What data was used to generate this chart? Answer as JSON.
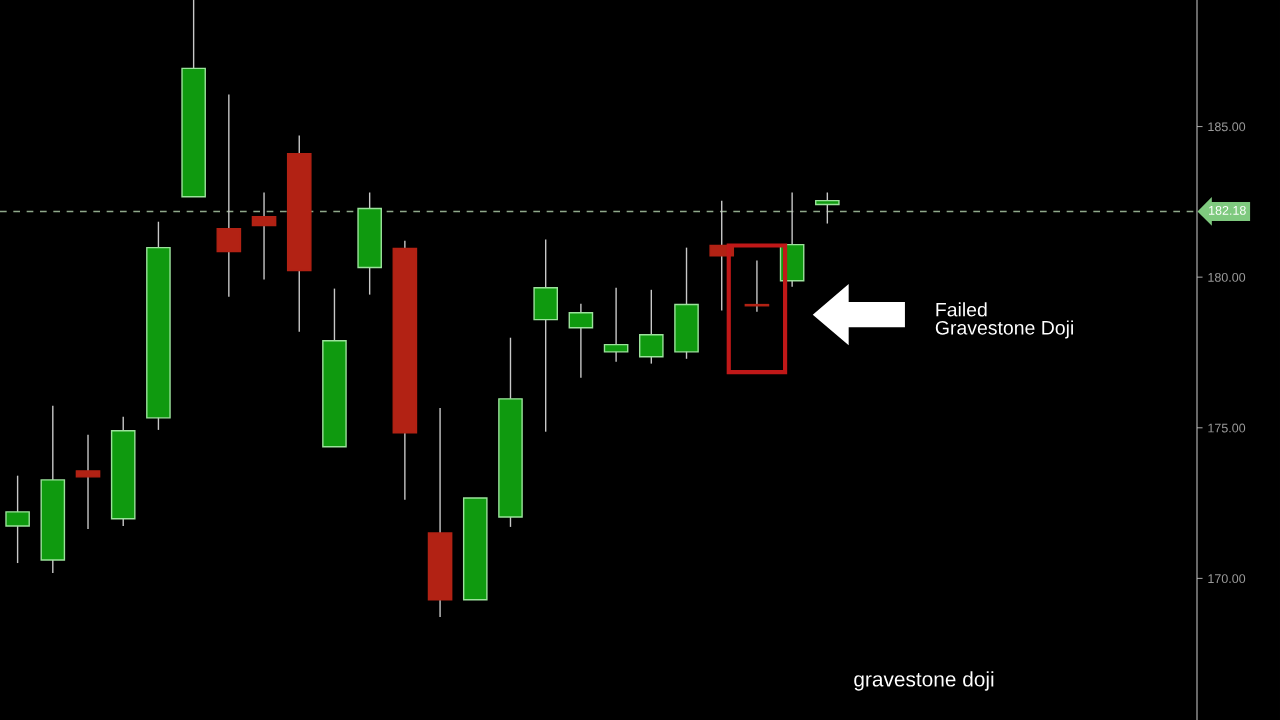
{
  "chart_data": {
    "type": "candlestick",
    "categories": [
      null,
      null,
      null,
      null,
      null,
      null,
      null,
      null,
      null,
      null,
      null,
      null,
      null,
      null,
      null,
      null,
      null,
      null,
      null,
      null,
      null,
      null,
      null,
      null,
      null,
      null,
      null,
      null,
      null,
      null,
      null,
      null,
      null,
      null
    ],
    "ohlc": [
      [
        171.74,
        173.41,
        170.51,
        172.21
      ],
      [
        170.61,
        175.73,
        170.18,
        173.27
      ],
      [
        173.57,
        174.77,
        171.64,
        173.37
      ],
      [
        171.98,
        175.37,
        171.74,
        174.9
      ],
      [
        175.33,
        181.84,
        174.93,
        180.98
      ],
      [
        182.67,
        189.2,
        182.67,
        186.93
      ],
      [
        181.61,
        186.06,
        179.35,
        180.85
      ],
      [
        182.01,
        182.81,
        179.92,
        181.71
      ],
      [
        184.1,
        184.7,
        178.19,
        180.22
      ],
      [
        174.37,
        179.62,
        174.37,
        177.89
      ],
      [
        180.32,
        182.81,
        179.42,
        182.28
      ],
      [
        180.95,
        181.21,
        172.61,
        174.83
      ],
      [
        171.51,
        175.66,
        168.72,
        169.29
      ],
      [
        169.29,
        172.67,
        169.29,
        172.67
      ],
      [
        172.04,
        177.99,
        171.71,
        175.96
      ],
      [
        178.59,
        181.25,
        174.87,
        179.65
      ],
      [
        178.32,
        179.12,
        176.66,
        178.82
      ],
      [
        177.52,
        179.65,
        177.19,
        177.76
      ],
      [
        177.36,
        179.58,
        177.13,
        178.09
      ],
      [
        177.52,
        180.98,
        177.29,
        179.09
      ],
      [
        181.05,
        182.54,
        178.89,
        180.71
      ],
      [
        179.09,
        180.55,
        178.85,
        179.05
      ],
      [
        179.88,
        182.81,
        179.68,
        181.08
      ],
      [
        182.41,
        182.81,
        181.78,
        182.54
      ],
      null,
      null,
      null,
      null,
      null,
      null,
      null,
      null,
      null,
      null
    ],
    "colors": [
      "#0f9a0f",
      "#0f9a0f",
      "#b22214",
      "#0f9a0f",
      "#0f9a0f",
      "#0f9a0f",
      "#b22214",
      "#b22214",
      "#b22214",
      "#0f9a0f",
      "#0f9a0f",
      "#b22214",
      "#b22214",
      "#0f9a0f",
      "#0f9a0f",
      "#0f9a0f",
      "#0f9a0f",
      "#0f9a0f",
      "#0f9a0f",
      "#0f9a0f",
      "#b22214",
      "#b22214",
      "#0f9a0f",
      "#0f9a0f",
      null,
      null,
      null,
      null,
      null,
      null,
      null,
      null,
      null,
      null
    ],
    "ylim": [
      165.3,
      189.2
    ],
    "yticks": [
      {
        "value": 170,
        "label": "170.00"
      },
      {
        "value": 175,
        "label": "175.00"
      },
      {
        "value": 180,
        "label": "180.00"
      },
      {
        "value": 185,
        "label": "185.00"
      }
    ],
    "tick_labels": "y",
    "grid": false,
    "ref_lines": [
      {
        "axis": "y",
        "value": 182.18,
        "label": "182.18",
        "color": "#8fa88a",
        "line_style": "dashed"
      }
    ],
    "annotations": [
      "Failed\nGravestone Doji",
      "gravestone doji"
    ]
  }
}
